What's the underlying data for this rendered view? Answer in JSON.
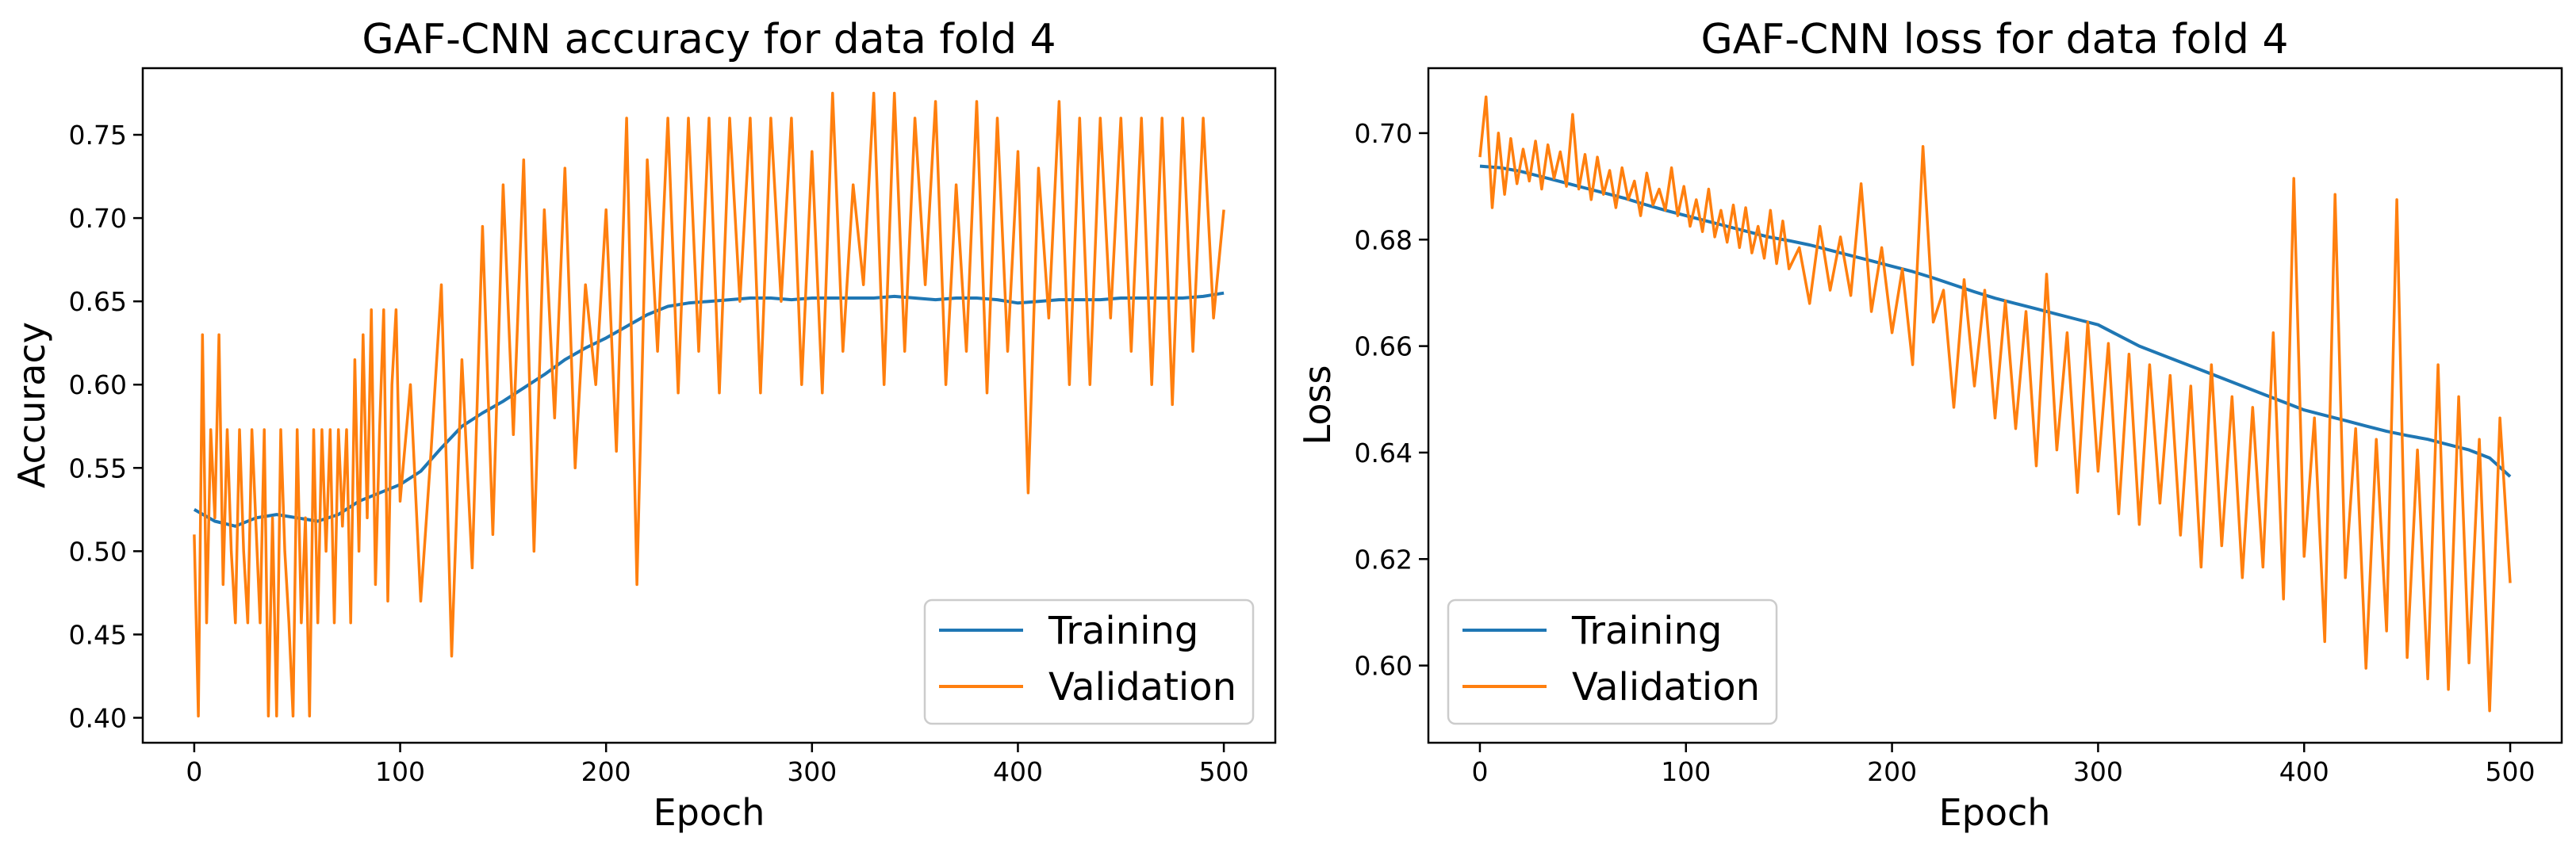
{
  "figure": {
    "colors": {
      "training": "#1f77b4",
      "validation": "#ff7f0e",
      "axes": "#000000",
      "background": "#ffffff"
    }
  },
  "chart_data": [
    {
      "type": "line",
      "title": "GAF-CNN accuracy for data fold 4",
      "xlabel": "Epoch",
      "ylabel": "Accuracy",
      "xlim": [
        -25,
        525
      ],
      "ylim": [
        0.385,
        0.79
      ],
      "xticks": [
        0,
        100,
        200,
        300,
        400,
        500
      ],
      "xtick_labels": [
        "0",
        "100",
        "200",
        "300",
        "400",
        "500"
      ],
      "yticks": [
        0.4,
        0.45,
        0.5,
        0.55,
        0.6,
        0.65,
        0.7,
        0.75
      ],
      "ytick_labels": [
        "0.40",
        "0.45",
        "0.50",
        "0.55",
        "0.60",
        "0.65",
        "0.70",
        "0.75"
      ],
      "grid": false,
      "legend": {
        "position": "lower-right",
        "entries": [
          "Training",
          "Validation"
        ]
      },
      "series": [
        {
          "name": "Training",
          "color": "#1f77b4",
          "x": [
            0,
            10,
            20,
            30,
            40,
            50,
            60,
            70,
            80,
            90,
            100,
            110,
            120,
            130,
            140,
            150,
            160,
            170,
            180,
            190,
            200,
            210,
            220,
            230,
            240,
            250,
            260,
            270,
            280,
            290,
            300,
            310,
            320,
            330,
            340,
            350,
            360,
            370,
            380,
            390,
            400,
            410,
            420,
            430,
            440,
            450,
            460,
            470,
            480,
            490,
            500
          ],
          "values": [
            0.525,
            0.518,
            0.515,
            0.52,
            0.522,
            0.52,
            0.518,
            0.522,
            0.53,
            0.535,
            0.54,
            0.548,
            0.562,
            0.575,
            0.583,
            0.59,
            0.598,
            0.606,
            0.615,
            0.622,
            0.628,
            0.635,
            0.642,
            0.647,
            0.649,
            0.65,
            0.651,
            0.652,
            0.652,
            0.651,
            0.652,
            0.652,
            0.652,
            0.652,
            0.653,
            0.652,
            0.651,
            0.652,
            0.652,
            0.651,
            0.649,
            0.65,
            0.651,
            0.651,
            0.651,
            0.652,
            0.652,
            0.652,
            0.652,
            0.653,
            0.655
          ]
        },
        {
          "name": "Validation",
          "color": "#ff7f0e",
          "x": [
            0,
            2,
            4,
            6,
            8,
            10,
            12,
            14,
            16,
            18,
            20,
            22,
            24,
            26,
            28,
            30,
            32,
            34,
            36,
            38,
            40,
            42,
            44,
            46,
            48,
            50,
            52,
            54,
            56,
            58,
            60,
            62,
            64,
            66,
            68,
            70,
            72,
            74,
            76,
            78,
            80,
            82,
            84,
            86,
            88,
            90,
            92,
            94,
            96,
            98,
            100,
            105,
            110,
            115,
            120,
            125,
            130,
            135,
            140,
            145,
            150,
            155,
            160,
            165,
            170,
            175,
            180,
            185,
            190,
            195,
            200,
            205,
            210,
            215,
            220,
            225,
            230,
            235,
            240,
            245,
            250,
            255,
            260,
            265,
            270,
            275,
            280,
            285,
            290,
            295,
            300,
            305,
            310,
            315,
            320,
            325,
            330,
            335,
            340,
            345,
            350,
            355,
            360,
            365,
            370,
            375,
            380,
            385,
            390,
            395,
            400,
            405,
            410,
            415,
            420,
            425,
            430,
            435,
            440,
            445,
            450,
            455,
            460,
            465,
            470,
            475,
            480,
            485,
            490,
            495,
            500
          ],
          "values": [
            0.51,
            0.401,
            0.63,
            0.457,
            0.573,
            0.52,
            0.63,
            0.48,
            0.573,
            0.5,
            0.457,
            0.573,
            0.5,
            0.457,
            0.573,
            0.515,
            0.457,
            0.573,
            0.401,
            0.52,
            0.401,
            0.573,
            0.5,
            0.457,
            0.401,
            0.573,
            0.457,
            0.52,
            0.401,
            0.573,
            0.457,
            0.573,
            0.5,
            0.573,
            0.457,
            0.573,
            0.515,
            0.573,
            0.457,
            0.615,
            0.5,
            0.63,
            0.52,
            0.645,
            0.48,
            0.573,
            0.645,
            0.47,
            0.6,
            0.645,
            0.53,
            0.6,
            0.47,
            0.56,
            0.66,
            0.437,
            0.615,
            0.49,
            0.695,
            0.51,
            0.72,
            0.57,
            0.735,
            0.5,
            0.705,
            0.58,
            0.73,
            0.55,
            0.66,
            0.6,
            0.705,
            0.56,
            0.76,
            0.48,
            0.735,
            0.62,
            0.76,
            0.595,
            0.76,
            0.62,
            0.76,
            0.595,
            0.76,
            0.65,
            0.76,
            0.595,
            0.76,
            0.65,
            0.76,
            0.6,
            0.74,
            0.595,
            0.775,
            0.62,
            0.72,
            0.66,
            0.775,
            0.6,
            0.775,
            0.62,
            0.76,
            0.66,
            0.77,
            0.6,
            0.72,
            0.62,
            0.77,
            0.595,
            0.76,
            0.62,
            0.74,
            0.535,
            0.73,
            0.64,
            0.77,
            0.6,
            0.76,
            0.6,
            0.76,
            0.64,
            0.76,
            0.62,
            0.76,
            0.6,
            0.76,
            0.588,
            0.76,
            0.62,
            0.76,
            0.64,
            0.705
          ]
        }
      ]
    },
    {
      "type": "line",
      "title": "GAF-CNN loss for data fold 4",
      "xlabel": "Epoch",
      "ylabel": "Loss",
      "xlim": [
        -25,
        525
      ],
      "ylim": [
        0.5855,
        0.7122
      ],
      "xticks": [
        0,
        100,
        200,
        300,
        400,
        500
      ],
      "xtick_labels": [
        "0",
        "100",
        "200",
        "300",
        "400",
        "500"
      ],
      "yticks": [
        0.6,
        0.62,
        0.64,
        0.66,
        0.68,
        0.7
      ],
      "ytick_labels": [
        "0.60",
        "0.62",
        "0.64",
        "0.66",
        "0.68",
        "0.70"
      ],
      "grid": false,
      "legend": {
        "position": "lower-left",
        "entries": [
          "Training",
          "Validation"
        ]
      },
      "series": [
        {
          "name": "Training",
          "color": "#1f77b4",
          "x": [
            0,
            10,
            20,
            30,
            40,
            50,
            60,
            70,
            80,
            90,
            100,
            110,
            120,
            130,
            140,
            150,
            160,
            170,
            180,
            190,
            200,
            210,
            220,
            230,
            240,
            250,
            260,
            270,
            280,
            290,
            300,
            310,
            320,
            330,
            340,
            350,
            360,
            370,
            380,
            390,
            400,
            410,
            420,
            430,
            440,
            450,
            460,
            470,
            480,
            490,
            500
          ],
          "values": [
            0.6938,
            0.6935,
            0.6928,
            0.6918,
            0.6908,
            0.6898,
            0.6888,
            0.6878,
            0.6866,
            0.6855,
            0.6845,
            0.6835,
            0.6825,
            0.6815,
            0.6805,
            0.6798,
            0.679,
            0.678,
            0.677,
            0.676,
            0.675,
            0.674,
            0.6728,
            0.6715,
            0.6702,
            0.669,
            0.668,
            0.667,
            0.666,
            0.665,
            0.664,
            0.662,
            0.66,
            0.6585,
            0.657,
            0.6555,
            0.654,
            0.6525,
            0.651,
            0.6495,
            0.648,
            0.647,
            0.646,
            0.645,
            0.644,
            0.6432,
            0.6425,
            0.6415,
            0.6405,
            0.639,
            0.6355
          ]
        },
        {
          "name": "Validation",
          "color": "#ff7f0e",
          "x": [
            0,
            3,
            6,
            9,
            12,
            15,
            18,
            21,
            24,
            27,
            30,
            33,
            36,
            39,
            42,
            45,
            48,
            51,
            54,
            57,
            60,
            63,
            66,
            69,
            72,
            75,
            78,
            81,
            84,
            87,
            90,
            93,
            96,
            99,
            102,
            105,
            108,
            111,
            114,
            117,
            120,
            123,
            126,
            129,
            132,
            135,
            138,
            141,
            144,
            147,
            150,
            155,
            160,
            165,
            170,
            175,
            180,
            185,
            190,
            195,
            200,
            205,
            210,
            215,
            220,
            225,
            230,
            235,
            240,
            245,
            250,
            255,
            260,
            265,
            270,
            275,
            280,
            285,
            290,
            295,
            300,
            305,
            310,
            315,
            320,
            325,
            330,
            335,
            340,
            345,
            350,
            355,
            360,
            365,
            370,
            375,
            380,
            385,
            390,
            395,
            400,
            405,
            410,
            415,
            420,
            425,
            430,
            435,
            440,
            445,
            450,
            455,
            460,
            465,
            470,
            475,
            480,
            485,
            490,
            495,
            500
          ],
          "values": [
            0.6955,
            0.7068,
            0.686,
            0.7,
            0.6885,
            0.699,
            0.6905,
            0.697,
            0.691,
            0.6985,
            0.6895,
            0.6978,
            0.6915,
            0.6965,
            0.69,
            0.7035,
            0.6895,
            0.696,
            0.6875,
            0.6955,
            0.6885,
            0.693,
            0.686,
            0.6935,
            0.6875,
            0.691,
            0.6845,
            0.6925,
            0.6865,
            0.6895,
            0.6855,
            0.6935,
            0.6845,
            0.69,
            0.6825,
            0.6875,
            0.6815,
            0.6895,
            0.6805,
            0.6855,
            0.6795,
            0.6865,
            0.6785,
            0.686,
            0.6775,
            0.6825,
            0.6765,
            0.6855,
            0.6755,
            0.6835,
            0.6745,
            0.6785,
            0.668,
            0.6825,
            0.6705,
            0.6805,
            0.6695,
            0.6905,
            0.6665,
            0.6785,
            0.6625,
            0.6745,
            0.6565,
            0.6975,
            0.6645,
            0.6705,
            0.6485,
            0.6725,
            0.6525,
            0.6705,
            0.6465,
            0.6685,
            0.6445,
            0.6665,
            0.6375,
            0.6735,
            0.6405,
            0.6625,
            0.6325,
            0.6645,
            0.6365,
            0.6605,
            0.6285,
            0.6585,
            0.6265,
            0.6565,
            0.6305,
            0.6545,
            0.6245,
            0.6525,
            0.6185,
            0.6565,
            0.6225,
            0.6505,
            0.6165,
            0.6485,
            0.6185,
            0.6625,
            0.6125,
            0.6915,
            0.6205,
            0.6465,
            0.6045,
            0.6885,
            0.6165,
            0.6445,
            0.5995,
            0.6425,
            0.6065,
            0.6875,
            0.6015,
            0.6405,
            0.5975,
            0.6565,
            0.5955,
            0.6505,
            0.6005,
            0.6425,
            0.5915,
            0.6465,
            0.6155
          ]
        }
      ]
    }
  ]
}
